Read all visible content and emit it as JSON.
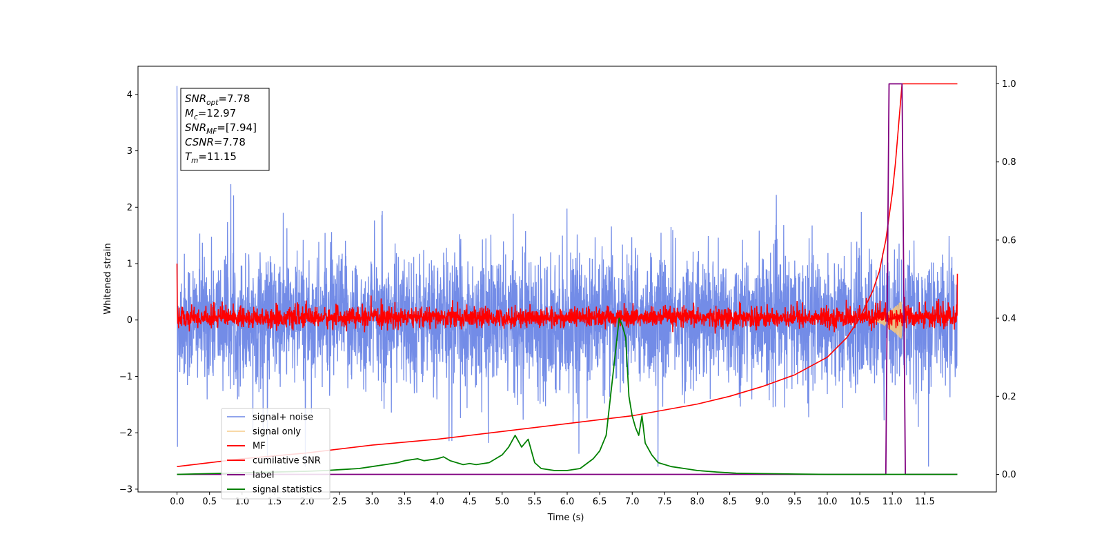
{
  "chart_data": {
    "type": "line",
    "xlabel": "Time (s)",
    "ylabel": "Whitened strain",
    "xlim": [
      -0.6,
      12.6
    ],
    "ylim": [
      -3.05,
      4.5
    ],
    "y2lim": [
      -0.045,
      1.045
    ],
    "x_ticks": [
      0.0,
      0.5,
      1.0,
      1.5,
      2.0,
      2.5,
      3.0,
      3.5,
      4.0,
      4.5,
      5.0,
      5.5,
      6.0,
      6.5,
      7.0,
      7.5,
      8.0,
      8.5,
      9.0,
      9.5,
      10.0,
      10.5,
      11.0,
      11.5
    ],
    "x_tick_labels": [
      "0.0",
      "0.5",
      "1.0",
      "1.5",
      "2.0",
      "2.5",
      "3.0",
      "3.5",
      "4.0",
      "4.5",
      "5.0",
      "5.5",
      "6.0",
      "6.5",
      "7.0",
      "7.5",
      "8.0",
      "8.5",
      "9.0",
      "9.5",
      "10.0",
      "10.5",
      "11.0",
      "11.5"
    ],
    "y_ticks": [
      -3,
      -2,
      -1,
      0,
      1,
      2,
      3,
      4
    ],
    "y_tick_labels": [
      "−3",
      "−2",
      "−1",
      "0",
      "1",
      "2",
      "3",
      "4"
    ],
    "y2_ticks": [
      0.0,
      0.2,
      0.4,
      0.6,
      0.8,
      1.0
    ],
    "y2_tick_labels": [
      "0.0",
      "0.2",
      "0.4",
      "0.6",
      "0.8",
      "1.0"
    ],
    "grid": false,
    "legend_position": "bottom-left",
    "series": [
      {
        "name": "signal+ noise",
        "color": "#6b86e6",
        "axis": "left",
        "kind": "noise",
        "x_range": [
          0.0,
          12.0
        ],
        "typical_range": [
          -1.5,
          1.5
        ],
        "extreme_range": [
          -2.6,
          4.2
        ]
      },
      {
        "name": "signal only",
        "color": "#f5c47c",
        "axis": "left",
        "kind": "chirp",
        "x_range": [
          10.6,
          11.15
        ],
        "peak_amplitude": 0.35
      },
      {
        "name": "MF",
        "color": "#ff0000",
        "axis": "left",
        "kind": "noise",
        "x_range": [
          0.0,
          12.0
        ],
        "typical_range": [
          -0.2,
          0.3
        ],
        "end_values": [
          1.0,
          0.82
        ]
      },
      {
        "name": "cumilative SNR",
        "color": "#ff0000",
        "axis": "right",
        "x": [
          0.0,
          1.0,
          2.0,
          3.0,
          4.0,
          5.0,
          6.0,
          7.0,
          8.0,
          8.5,
          9.0,
          9.5,
          10.0,
          10.3,
          10.5,
          10.7,
          10.8,
          10.9,
          11.0,
          11.05,
          11.1,
          11.15,
          11.3,
          12.0
        ],
        "y": [
          0.02,
          0.04,
          0.055,
          0.075,
          0.09,
          0.11,
          0.13,
          0.15,
          0.18,
          0.2,
          0.225,
          0.255,
          0.3,
          0.35,
          0.4,
          0.47,
          0.52,
          0.6,
          0.72,
          0.8,
          0.9,
          1.0,
          1.0,
          1.0
        ]
      },
      {
        "name": "label",
        "color": "#800080",
        "axis": "right",
        "x": [
          0.0,
          10.9,
          10.95,
          11.15,
          11.2,
          12.0
        ],
        "y": [
          0.0,
          0.0,
          1.0,
          1.0,
          0.0,
          0.0
        ]
      },
      {
        "name": "signal statistics",
        "color": "#008000",
        "axis": "right",
        "x": [
          0.0,
          0.5,
          1.0,
          1.5,
          2.0,
          2.3,
          2.5,
          2.8,
          3.0,
          3.2,
          3.4,
          3.5,
          3.7,
          3.8,
          4.0,
          4.1,
          4.2,
          4.4,
          4.5,
          4.6,
          4.8,
          4.9,
          5.0,
          5.1,
          5.2,
          5.3,
          5.35,
          5.4,
          5.5,
          5.6,
          5.8,
          6.0,
          6.2,
          6.4,
          6.5,
          6.6,
          6.7,
          6.8,
          6.85,
          6.9,
          6.95,
          7.0,
          7.05,
          7.1,
          7.15,
          7.2,
          7.3,
          7.4,
          7.6,
          7.8,
          8.0,
          8.3,
          8.6,
          9.0,
          9.5,
          10.0,
          11.0,
          12.0
        ],
        "y": [
          0.0,
          0.002,
          0.004,
          0.006,
          0.008,
          0.01,
          0.012,
          0.015,
          0.02,
          0.025,
          0.03,
          0.035,
          0.04,
          0.035,
          0.04,
          0.045,
          0.035,
          0.025,
          0.028,
          0.025,
          0.03,
          0.04,
          0.05,
          0.07,
          0.1,
          0.07,
          0.08,
          0.09,
          0.03,
          0.015,
          0.01,
          0.01,
          0.015,
          0.04,
          0.06,
          0.1,
          0.25,
          0.4,
          0.38,
          0.35,
          0.2,
          0.15,
          0.12,
          0.1,
          0.15,
          0.08,
          0.05,
          0.03,
          0.02,
          0.015,
          0.01,
          0.006,
          0.003,
          0.002,
          0.001,
          0.0,
          0.0,
          0.0
        ]
      }
    ],
    "annotation_box": [
      {
        "main": "SNR",
        "sub": "opt",
        "rest": "=7.78"
      },
      {
        "main": "M",
        "sub": "c",
        "rest": "=12.97"
      },
      {
        "main": "SNR",
        "sub": "MF",
        "rest": "=[7.94]"
      },
      {
        "main": "CSNR",
        "sub": "",
        "rest": "=7.78"
      },
      {
        "main": "T",
        "sub": "m",
        "rest": "=11.15"
      }
    ]
  }
}
